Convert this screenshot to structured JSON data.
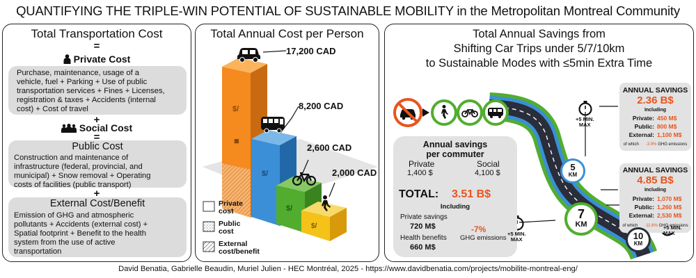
{
  "title": "QUANTIFYING THE TRIPLE-WIN POTENTIAL OF SUSTAINABLE MOBILITY in the Metropolitan Montreal Community",
  "footer": "David Benatia, Gabrielle Beaudin, Muriel Julien - HEC Montréal, 2025 - https://www.davidbenatia.com/projects/mobilite-montreal-eng/",
  "colors": {
    "orange": "#f58a1f",
    "blue": "#3b8fd6",
    "green": "#52ad2f",
    "yellow": "#f5c218",
    "accent": "#e8541e",
    "road": "#2a2d3a"
  },
  "left": {
    "title": "Total Transportation Cost",
    "eq": "=",
    "plus": "+",
    "private_title": "Private Cost",
    "private_text_lines": [
      "Purchase, maintenance, usage of a",
      "vehicle, fuel + Parking + Use of public",
      "transportation services + Fines + Licenses,",
      "registration & taxes + Accidents (internal",
      "cost) + Cost of travel"
    ],
    "social_title": "Social Cost",
    "public_title": "Public Cost",
    "public_text_lines": [
      "Construction and maintenance of",
      "infrastructure (federal, provincial, and",
      "municipal) + Snow removal + Operating",
      "costs of facilities (public transport)"
    ],
    "external_title": "External Cost/Benefit",
    "external_text_lines": [
      "Emission of GHG and atmospheric",
      "pollutants + Accidents (external cost) +",
      "Spatial footprint + Benefit to the health",
      "system from the use of active",
      "transportation"
    ]
  },
  "middle": {
    "title": "Total Annual Cost per Person",
    "bars": [
      {
        "mode": "car-icon",
        "label": "17,200 CAD",
        "value": 17200
      },
      {
        "mode": "bus-icon",
        "label": "8,200 CAD",
        "value": 8200
      },
      {
        "mode": "bicycle-icon",
        "label": "2,600 CAD",
        "value": 2600
      },
      {
        "mode": "pedestrian-icon",
        "label": "2,000 CAD",
        "value": 2000
      }
    ],
    "legend": [
      {
        "lines": [
          "Private",
          "cost"
        ]
      },
      {
        "lines": [
          "Public",
          "cost"
        ]
      },
      {
        "lines": [
          "External",
          "cost/benefit"
        ]
      }
    ]
  },
  "right": {
    "title_lines": [
      "Total Annual Savings from",
      "Shifting Car Trips under 5/7/10km",
      "to Sustainable Modes with ≤5min Extra Time"
    ],
    "savings": [
      {
        "header": "ANNUAL SAVINGS",
        "value": "2.36 B$",
        "including": "Including",
        "rows": [
          {
            "k": "Private:",
            "v": "450 M$"
          },
          {
            "k": "Public:",
            "v": "800 M$"
          },
          {
            "k": "External:",
            "v": "1,100 M$"
          }
        ],
        "ghg_pre": "of which",
        "ghg_val": "-3.9%",
        "ghg_post": "GHG emissions"
      },
      {
        "header": "ANNUAL SAVINGS",
        "value": "4.85 B$",
        "including": "Including",
        "rows": [
          {
            "k": "Private:",
            "v": "1,070 M$"
          },
          {
            "k": "Public:",
            "v": "1,260 M$"
          },
          {
            "k": "External:",
            "v": "2,530 M$"
          }
        ],
        "ghg_pre": "of which",
        "ghg_val": "-11.6%",
        "ghg_post": "GHG emissions"
      }
    ],
    "commuter": {
      "title_lines": [
        "Annual savings",
        "per commuter"
      ],
      "private_label": "Private",
      "private_value": "1,400 $",
      "social_label": "Social",
      "social_value": "4,100 $",
      "total_label": "TOTAL:",
      "total_value": "3.51 B$",
      "including": "Including",
      "private_savings_label": "Private savings",
      "private_savings_value": "720 M$",
      "health_label": "Health benefits",
      "health_value": "660 M$",
      "ghg_value": "-7%",
      "ghg_label": "GHG emissions"
    },
    "timer_label_lines": [
      "+5 MIN.",
      "MAX"
    ],
    "km_labels": [
      "5",
      "7",
      "10"
    ],
    "km_unit": "KM"
  }
}
